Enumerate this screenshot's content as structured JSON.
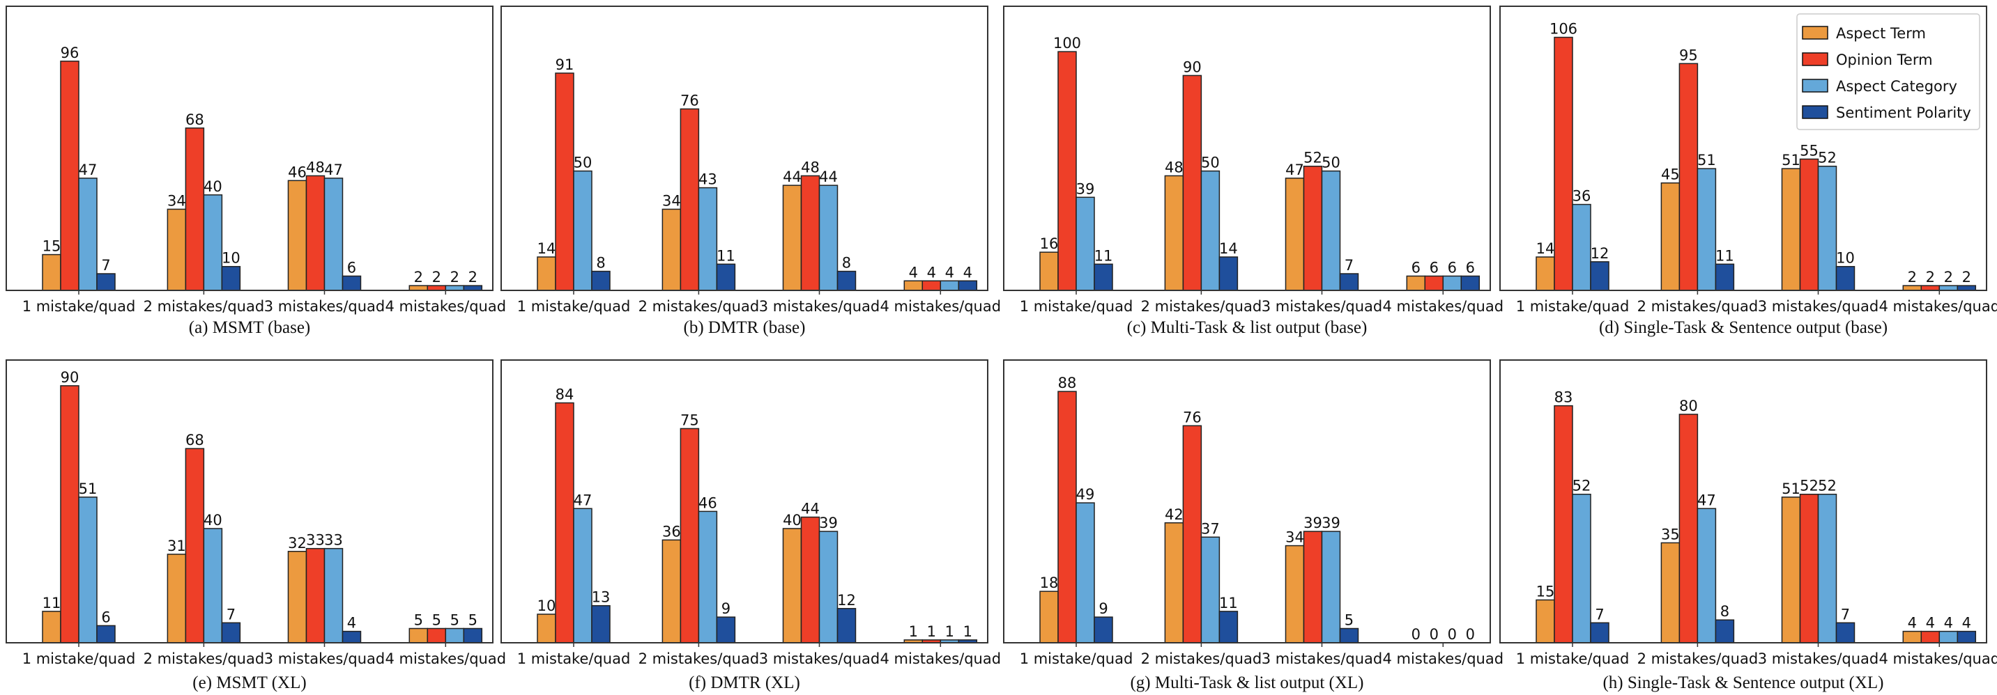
{
  "chart_data": [
    {
      "type": "bar",
      "title": "(a) MSMT (base)",
      "categories": [
        "1 mistake/quad",
        "2 mistakes/quad",
        "3 mistakes/quad",
        "4 mistakes/quad"
      ],
      "ylim": [
        0,
        119
      ],
      "series": [
        {
          "name": "Aspect Term",
          "values": [
            15,
            34,
            46,
            2
          ]
        },
        {
          "name": "Opinion Term",
          "values": [
            96,
            68,
            48,
            2
          ]
        },
        {
          "name": "Aspect Category",
          "values": [
            47,
            40,
            47,
            2
          ]
        },
        {
          "name": "Sentiment Polarity",
          "values": [
            7,
            10,
            6,
            2
          ]
        }
      ]
    },
    {
      "type": "bar",
      "title": "(b) DMTR (base)",
      "categories": [
        "1 mistake/quad",
        "2 mistakes/quad",
        "3 mistakes/quad",
        "4 mistakes/quad"
      ],
      "ylim": [
        0,
        119
      ],
      "series": [
        {
          "name": "Aspect Term",
          "values": [
            14,
            34,
            44,
            4
          ]
        },
        {
          "name": "Opinion Term",
          "values": [
            91,
            76,
            48,
            4
          ]
        },
        {
          "name": "Aspect Category",
          "values": [
            50,
            43,
            44,
            4
          ]
        },
        {
          "name": "Sentiment Polarity",
          "values": [
            8,
            11,
            8,
            4
          ]
        }
      ]
    },
    {
      "type": "bar",
      "title": "(c) Multi-Task & list output (base)",
      "categories": [
        "1 mistake/quad",
        "2 mistakes/quad",
        "3 mistakes/quad",
        "4 mistakes/quad"
      ],
      "ylim": [
        0,
        119
      ],
      "series": [
        {
          "name": "Aspect Term",
          "values": [
            16,
            48,
            47,
            6
          ]
        },
        {
          "name": "Opinion Term",
          "values": [
            100,
            90,
            52,
            6
          ]
        },
        {
          "name": "Aspect Category",
          "values": [
            39,
            50,
            50,
            6
          ]
        },
        {
          "name": "Sentiment Polarity",
          "values": [
            11,
            14,
            7,
            6
          ]
        }
      ]
    },
    {
      "type": "bar",
      "title": "(d) Single-Task & Sentence output (base)",
      "categories": [
        "1 mistake/quad",
        "2 mistakes/quad",
        "3 mistakes/quad",
        "4 mistakes/quad"
      ],
      "ylim": [
        0,
        119
      ],
      "legend": "top-right",
      "series": [
        {
          "name": "Aspect Term",
          "values": [
            14,
            45,
            51,
            2
          ]
        },
        {
          "name": "Opinion Term",
          "values": [
            106,
            95,
            55,
            2
          ]
        },
        {
          "name": "Aspect Category",
          "values": [
            36,
            51,
            52,
            2
          ]
        },
        {
          "name": "Sentiment Polarity",
          "values": [
            12,
            11,
            10,
            2
          ]
        }
      ]
    },
    {
      "type": "bar",
      "title": "(e) MSMT (XL)",
      "categories": [
        "1 mistake/quad",
        "2 mistakes/quad",
        "3 mistakes/quad",
        "4 mistakes/quad"
      ],
      "ylim": [
        0,
        99
      ],
      "series": [
        {
          "name": "Aspect Term",
          "values": [
            11,
            31,
            32,
            5
          ]
        },
        {
          "name": "Opinion Term",
          "values": [
            90,
            68,
            33,
            5
          ]
        },
        {
          "name": "Aspect Category",
          "values": [
            51,
            40,
            33,
            5
          ]
        },
        {
          "name": "Sentiment Polarity",
          "values": [
            6,
            7,
            4,
            5
          ]
        }
      ]
    },
    {
      "type": "bar",
      "title": "(f) DMTR (XL)",
      "categories": [
        "1 mistake/quad",
        "2 mistakes/quad",
        "3 mistakes/quad",
        "4 mistakes/quad"
      ],
      "ylim": [
        0,
        99
      ],
      "series": [
        {
          "name": "Aspect Term",
          "values": [
            10,
            36,
            40,
            1
          ]
        },
        {
          "name": "Opinion Term",
          "values": [
            84,
            75,
            44,
            1
          ]
        },
        {
          "name": "Aspect Category",
          "values": [
            47,
            46,
            39,
            1
          ]
        },
        {
          "name": "Sentiment Polarity",
          "values": [
            13,
            9,
            12,
            1
          ]
        }
      ]
    },
    {
      "type": "bar",
      "title": "(g) Multi-Task & list output (XL)",
      "categories": [
        "1 mistake/quad",
        "2 mistakes/quad",
        "3 mistakes/quad",
        "4 mistakes/quad"
      ],
      "ylim": [
        0,
        99
      ],
      "series": [
        {
          "name": "Aspect Term",
          "values": [
            18,
            42,
            34,
            0
          ]
        },
        {
          "name": "Opinion Term",
          "values": [
            88,
            76,
            39,
            0
          ]
        },
        {
          "name": "Aspect Category",
          "values": [
            49,
            37,
            39,
            0
          ]
        },
        {
          "name": "Sentiment Polarity",
          "values": [
            9,
            11,
            5,
            0
          ]
        }
      ]
    },
    {
      "type": "bar",
      "title": "(h) Single-Task & Sentence output (XL)",
      "categories": [
        "1 mistake/quad",
        "2 mistakes/quad",
        "3 mistakes/quad",
        "4 mistakes/quad"
      ],
      "ylim": [
        0,
        99
      ],
      "series": [
        {
          "name": "Aspect Term",
          "values": [
            15,
            35,
            51,
            4
          ]
        },
        {
          "name": "Opinion Term",
          "values": [
            83,
            80,
            52,
            4
          ]
        },
        {
          "name": "Aspect Category",
          "values": [
            52,
            47,
            52,
            4
          ]
        },
        {
          "name": "Sentiment Polarity",
          "values": [
            7,
            8,
            7,
            4
          ]
        }
      ]
    }
  ],
  "legend": {
    "entries": [
      "Aspect Term",
      "Opinion Term",
      "Aspect Category",
      "Sentiment Polarity"
    ]
  },
  "colors": {
    "Aspect Term": "#ec9a3f",
    "Opinion Term": "#ee3f28",
    "Aspect Category": "#64a8d9",
    "Sentiment Polarity": "#1f4f9c"
  }
}
